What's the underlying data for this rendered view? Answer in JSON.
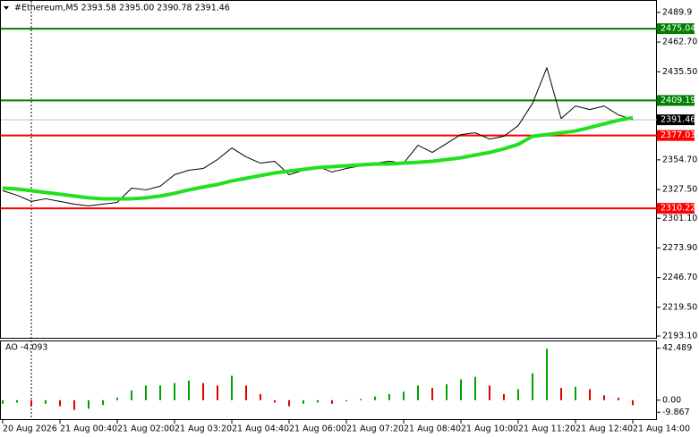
{
  "chart_data": [
    {
      "type": "line",
      "title": "#Ethereum,M5  2393.58 2395.00 2390.78 2391.46",
      "categories": [
        "20 Aug 2026",
        null,
        null,
        null,
        "21 Aug 00:40",
        null,
        null,
        null,
        "21 Aug 02:00",
        null,
        null,
        null,
        "21 Aug 03:20",
        null,
        null,
        null,
        "21 Aug 04:40",
        null,
        null,
        null,
        "21 Aug 06:00",
        null,
        null,
        null,
        "21 Aug 07:20",
        null,
        null,
        null,
        "21 Aug 08:40",
        null,
        null,
        null,
        "21 Aug 10:00",
        null,
        null,
        null,
        "21 Aug 11:20",
        null,
        null,
        null,
        "21 Aug 12:40",
        null,
        null,
        null,
        "21 Aug 14:00"
      ],
      "series": [
        {
          "color": "#000000",
          "line_width": 1,
          "values": [
            2326.4,
            2322.3,
            2316.6,
            2319.0,
            2316.6,
            2314.1,
            2312.5,
            2314.1,
            2315.7,
            2328.8,
            2327.2,
            2330.5,
            2341.1,
            2345.2,
            2346.8,
            2355.0,
            2365.6,
            2357.4,
            2351.7,
            2353.4,
            2341.1,
            2345.2,
            2348.5,
            2343.6,
            2346.8,
            2349.3,
            2351.7,
            2353.4,
            2351.7,
            2368.1,
            2361.5,
            2369.7,
            2377.9,
            2379.5,
            2373.8,
            2376.3,
            2386.1,
            2406.5,
            2439.2,
            2392.6,
            2404.1,
            2400.8,
            2404.1,
            2395.9,
            2391.5
          ]
        },
        {
          "color": "#22e01e",
          "line_width": 4,
          "values": [
            2328.8,
            2328.0,
            2326.4,
            2324.8,
            2323.2,
            2321.5,
            2319.9,
            2319.0,
            2319.0,
            2319.0,
            2319.9,
            2321.5,
            2324.0,
            2327.2,
            2329.7,
            2332.1,
            2335.4,
            2337.8,
            2340.3,
            2342.7,
            2344.4,
            2346.0,
            2347.6,
            2348.5,
            2349.3,
            2350.1,
            2350.9,
            2350.9,
            2351.7,
            2352.5,
            2353.4,
            2355.0,
            2356.6,
            2359.1,
            2361.5,
            2364.8,
            2368.9,
            2376.3,
            2377.9,
            2379.5,
            2381.2,
            2384.4,
            2387.7,
            2391.0,
            2393.4
          ]
        }
      ],
      "ylim": [
        2191.5,
        2500.5
      ],
      "yticks": [
        2489.9,
        {
          "value": 2462.7,
          "label": "2462.70"
        },
        {
          "value": 2435.5,
          "label": "2435.50"
        },
        {
          "value": 2354.7,
          "label": "2354.70"
        },
        {
          "value": 2327.5,
          "label": "2327.50"
        },
        {
          "value": 2301.1,
          "label": "2301.10"
        },
        {
          "value": 2273.9,
          "label": "2273.90"
        },
        {
          "value": 2246.7,
          "label": "2246.70"
        },
        {
          "value": 2219.5,
          "label": "2219.50"
        },
        {
          "value": 2193.1,
          "label": "2193.10"
        }
      ],
      "levels": [
        {
          "value": 2475.04,
          "color": "#008000"
        },
        {
          "value": 2409.19,
          "color": "#008000"
        },
        {
          "value": 2377.03,
          "color": "#ff0000"
        },
        {
          "value": 2310.22,
          "color": "#ff0000"
        }
      ],
      "last_price": 2391.46,
      "last_color": "#c0c0c0"
    },
    {
      "type": "histogram_ao",
      "title": "AO -4.093",
      "values": [
        -3,
        -2,
        -5,
        -3,
        -5,
        -8,
        -7,
        -4,
        2,
        8,
        12,
        12,
        14,
        16,
        14,
        12,
        20,
        12,
        5,
        -2,
        -5,
        -3,
        -2,
        -3,
        -1,
        1,
        3,
        5,
        7,
        12,
        10,
        13,
        17,
        19,
        12,
        5,
        9,
        22,
        42,
        10,
        11,
        9,
        4,
        2,
        -4.093
      ],
      "up_color": "#00a000",
      "down_color": "#e00000",
      "ylim": [
        -15.53,
        48.15
      ],
      "yticks": [
        42.489,
        {
          "value": 0,
          "label": "0.00"
        },
        -9.867
      ]
    }
  ]
}
